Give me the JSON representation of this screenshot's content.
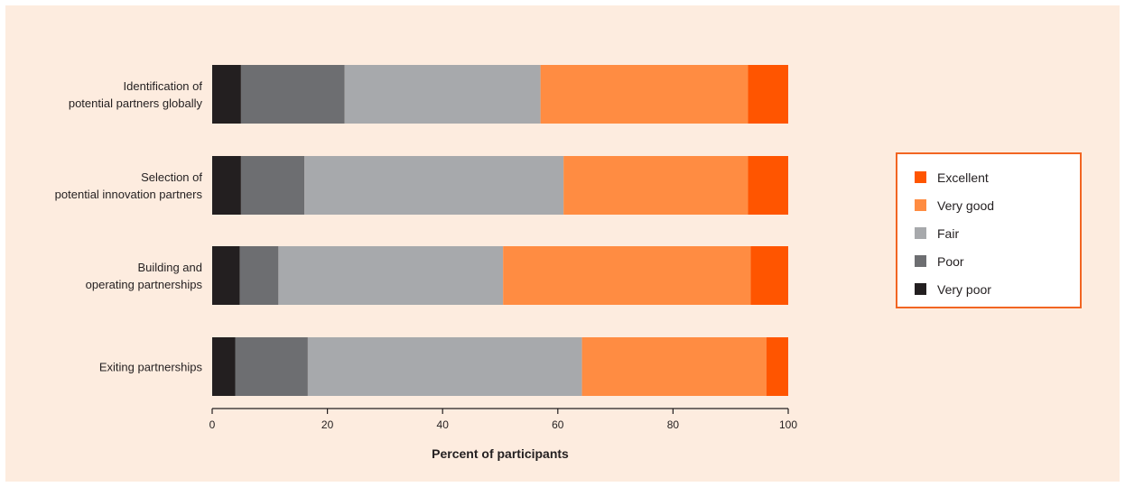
{
  "chart_data": {
    "type": "bar",
    "orientation": "horizontal",
    "stacked": true,
    "categories": [
      [
        "Identification of",
        "potential partners globally"
      ],
      [
        "Selection of",
        "potential innovation partners"
      ],
      [
        "Building and",
        "operating partnerships"
      ],
      [
        "Exiting partnerships"
      ]
    ],
    "series": [
      {
        "name": "Very poor",
        "color": "#231f20",
        "values": [
          5,
          5,
          4.8,
          4
        ]
      },
      {
        "name": "Poor",
        "color": "#6d6e71",
        "values": [
          18,
          11,
          6.7,
          12.6
        ]
      },
      {
        "name": "Fair",
        "color": "#a7a9ac",
        "values": [
          34,
          45,
          39,
          47.6
        ]
      },
      {
        "name": "Very good",
        "color": "#ff8c42",
        "values": [
          36,
          32,
          43,
          32
        ]
      },
      {
        "name": "Excellent",
        "color": "#ff5500",
        "values": [
          7,
          7,
          6.5,
          3.8
        ]
      }
    ],
    "xlabel": "Percent of participants",
    "xlim": [
      0,
      100
    ],
    "xticks": [
      "0",
      "20",
      "40",
      "60",
      "80",
      "100"
    ],
    "legend": {
      "position": "right",
      "border_color": "#f26522",
      "order": [
        "Excellent",
        "Very good",
        "Fair",
        "Poor",
        "Very poor"
      ]
    },
    "grid": false
  }
}
